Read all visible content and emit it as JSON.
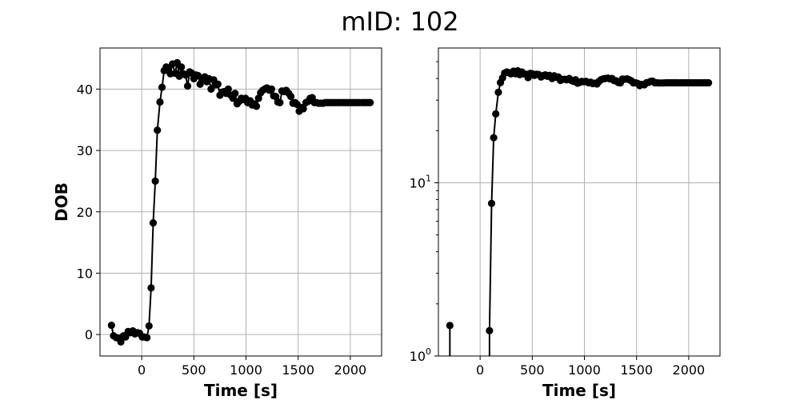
{
  "figure": {
    "title": "mID: 102"
  },
  "chart_data": [
    {
      "type": "line",
      "scale": "linear",
      "xlabel": "Time [s]",
      "ylabel": "DOB",
      "xlim": [
        -400,
        2300
      ],
      "ylim": [
        -3.5,
        46.7
      ],
      "xticks": [
        0,
        500,
        1000,
        1500,
        2000
      ],
      "xtick_labels": [
        "0",
        "500",
        "1000",
        "1500",
        "2000"
      ],
      "yticks": [
        0,
        10,
        20,
        30,
        40
      ],
      "ytick_labels": [
        "0",
        "10",
        "20",
        "30",
        "40"
      ],
      "grid": true,
      "marker": "circle",
      "color": "#000000",
      "series": [
        {
          "x": [
            -290,
            -270,
            -245,
            -220,
            -200,
            -175,
            -155,
            -130,
            -110,
            -85,
            -65,
            -40,
            -20,
            5,
            25,
            50,
            70,
            90,
            110,
            130,
            150,
            175,
            195,
            215,
            235,
            255,
            275,
            295,
            320,
            340,
            360,
            380,
            400,
            420,
            440,
            460,
            480,
            500,
            520,
            540,
            560,
            585,
            605,
            625,
            645,
            665,
            690,
            710,
            730,
            750,
            770,
            790,
            810,
            830,
            855,
            875,
            895,
            915,
            935,
            955,
            975,
            995,
            1015,
            1040,
            1060,
            1080,
            1100,
            1120,
            1140,
            1160,
            1180,
            1200,
            1225,
            1245,
            1265,
            1285,
            1305,
            1325,
            1345,
            1365,
            1385,
            1410,
            1430,
            1450,
            1470,
            1490,
            1510,
            1530,
            1550,
            1575,
            1595,
            1615,
            1635,
            1655,
            1675,
            1695,
            1715,
            1740,
            1760,
            1780,
            1800,
            1820,
            1840,
            1860,
            1880,
            1900,
            1925,
            1945,
            1965,
            1985,
            2005,
            2025,
            2045,
            2065,
            2085,
            2110,
            2130,
            2150,
            2170,
            2190
          ],
          "y": [
            1.5,
            -0.2,
            -0.5,
            -0.6,
            -1.2,
            -0.2,
            -0.4,
            0.5,
            0.3,
            0.6,
            0.1,
            0.3,
            0.2,
            -0.4,
            -0.4,
            -0.5,
            1.4,
            7.6,
            18.2,
            25.0,
            33.3,
            37.9,
            40.3,
            43.0,
            43.6,
            43.2,
            42.5,
            44.1,
            42.6,
            44.3,
            42.1,
            43.6,
            42.5,
            42.3,
            40.5,
            42.8,
            42.6,
            41.7,
            42.3,
            42.2,
            40.8,
            41.6,
            42.0,
            41.2,
            41.7,
            40.0,
            41.5,
            40.7,
            40.8,
            39.0,
            39.5,
            39.6,
            39.3,
            40.0,
            39.0,
            38.5,
            39.3,
            37.6,
            38.0,
            38.5,
            38.3,
            38.5,
            37.8,
            38.1,
            37.4,
            37.6,
            37.2,
            38.5,
            39.4,
            39.8,
            40.0,
            40.2,
            39.8,
            40.0,
            38.9,
            38.8,
            37.9,
            37.8,
            39.7,
            39.6,
            39.8,
            39.3,
            38.8,
            37.7,
            37.8,
            37.5,
            36.4,
            37.0,
            36.8,
            37.8,
            38.0,
            38.5,
            38.6,
            37.8,
            37.8,
            37.7,
            37.7,
            37.7,
            37.8,
            37.8,
            37.8,
            37.8,
            37.8,
            37.8,
            37.8,
            37.8,
            37.8,
            37.8,
            37.8,
            37.8,
            37.8,
            37.8,
            37.8,
            37.8,
            37.8,
            37.8,
            37.8,
            37.8,
            37.8,
            37.8
          ]
        }
      ]
    },
    {
      "type": "line",
      "scale": "log",
      "xlabel": "Time [s]",
      "ylabel": "",
      "xlim": [
        -400,
        2300
      ],
      "ylim": [
        1,
        60
      ],
      "xticks": [
        0,
        500,
        1000,
        1500,
        2000
      ],
      "xtick_labels": [
        "0",
        "500",
        "1000",
        "1500",
        "2000"
      ],
      "yticks": [
        1,
        10
      ],
      "ytick_labels": [
        "10^0",
        "10^1"
      ],
      "grid": true,
      "marker": "circle",
      "color": "#000000",
      "series": [
        {
          "x": [
            -290,
            90,
            110,
            130,
            150,
            175,
            195,
            215,
            235,
            255,
            275,
            295,
            320,
            340,
            360,
            380,
            400,
            420,
            440,
            460,
            480,
            500,
            520,
            540,
            560,
            585,
            605,
            625,
            645,
            665,
            690,
            710,
            730,
            750,
            770,
            790,
            810,
            830,
            855,
            875,
            895,
            915,
            935,
            955,
            975,
            995,
            1015,
            1040,
            1060,
            1080,
            1100,
            1120,
            1140,
            1160,
            1180,
            1200,
            1225,
            1245,
            1265,
            1285,
            1305,
            1325,
            1345,
            1365,
            1385,
            1410,
            1430,
            1450,
            1470,
            1490,
            1510,
            1530,
            1550,
            1575,
            1595,
            1615,
            1635,
            1655,
            1675,
            1695,
            1715,
            1740,
            1760,
            1780,
            1800,
            1820,
            1840,
            1860,
            1880,
            1900,
            1925,
            1945,
            1965,
            1985,
            2005,
            2025,
            2045,
            2065,
            2085,
            2110,
            2130,
            2150,
            2170,
            2190
          ],
          "y": [
            1.5,
            1.4,
            7.6,
            18.2,
            25.0,
            33.3,
            37.9,
            40.3,
            43.0,
            43.6,
            43.2,
            42.5,
            44.1,
            42.6,
            44.3,
            42.1,
            43.6,
            42.5,
            42.3,
            40.5,
            42.8,
            42.6,
            41.7,
            42.3,
            42.2,
            40.8,
            41.6,
            42.0,
            41.2,
            41.7,
            40.0,
            41.5,
            40.7,
            40.8,
            39.0,
            39.5,
            39.6,
            39.3,
            40.0,
            39.0,
            38.5,
            39.3,
            37.6,
            38.0,
            38.5,
            38.3,
            38.5,
            37.8,
            38.1,
            37.4,
            37.6,
            37.2,
            38.5,
            39.4,
            39.8,
            40.0,
            40.2,
            39.8,
            40.0,
            38.9,
            38.8,
            37.9,
            37.8,
            39.7,
            39.6,
            39.8,
            39.3,
            38.8,
            37.7,
            37.8,
            37.5,
            36.4,
            37.0,
            36.8,
            37.8,
            38.0,
            38.5,
            38.6,
            37.8,
            37.8,
            37.7,
            37.7,
            37.7,
            37.8,
            37.8,
            37.8,
            37.8,
            37.8,
            37.8,
            37.8,
            37.8,
            37.8,
            37.8,
            37.8,
            37.8,
            37.8,
            37.8,
            37.8,
            37.8,
            37.8,
            37.8,
            37.8,
            37.8,
            37.8
          ]
        }
      ]
    }
  ]
}
